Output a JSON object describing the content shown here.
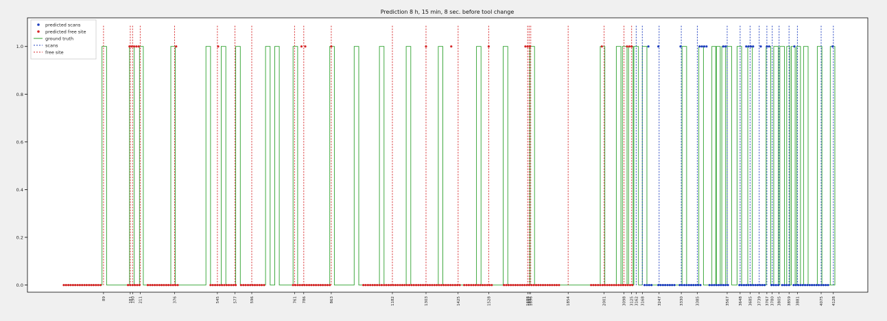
{
  "chart_data": {
    "type": "line",
    "title": "Prediction 8 h, 15 min, 8 sec. before tool change",
    "xlabel": "",
    "ylabel": "",
    "xlim": [
      0,
      1000
    ],
    "ylim": [
      -0.03,
      1.12
    ],
    "yticks": [
      0.0,
      0.2,
      0.4,
      0.6,
      0.8,
      1.0
    ],
    "ytick_labels": [
      "0.0",
      "0.2",
      "0.4",
      "0.6",
      "0.8",
      "1.0"
    ],
    "legend": {
      "placement": "top-left",
      "entries": [
        {
          "label": "predicted scans",
          "color": "#1f3fbf",
          "marker": "dot"
        },
        {
          "label": "predicted free site",
          "color": "#d62728",
          "marker": "dot"
        },
        {
          "label": "ground truth",
          "color": "#2ca02c",
          "marker": "line"
        },
        {
          "label": "scans",
          "color": "#1f3fbf",
          "marker": "dashed"
        },
        {
          "label": "free site",
          "color": "#d62728",
          "marker": "dashed"
        }
      ]
    },
    "ground_truth_pulses": [
      [
        50,
        56
      ],
      [
        86,
        92
      ],
      [
        99,
        104
      ],
      [
        140,
        146
      ],
      [
        186,
        192
      ],
      [
        206,
        212
      ],
      [
        225,
        231
      ],
      [
        264,
        270
      ],
      [
        276,
        282
      ],
      [
        300,
        306
      ],
      [
        348,
        354
      ],
      [
        380,
        386
      ],
      [
        413,
        419
      ],
      [
        448,
        454
      ],
      [
        490,
        496
      ],
      [
        540,
        546
      ],
      [
        575,
        581
      ],
      [
        610,
        616
      ],
      [
        702,
        708
      ],
      [
        723,
        729
      ],
      [
        731,
        737
      ],
      [
        739,
        745
      ],
      [
        746,
        752
      ],
      [
        757,
        763
      ],
      [
        809,
        815
      ],
      [
        831,
        837
      ],
      [
        848,
        854
      ],
      [
        853,
        859
      ],
      [
        861,
        866
      ],
      [
        868,
        874
      ],
      [
        881,
        887
      ],
      [
        895,
        901
      ],
      [
        919,
        925
      ],
      [
        929,
        935
      ],
      [
        937,
        943
      ],
      [
        946,
        950
      ],
      [
        952,
        957
      ],
      [
        959,
        964
      ],
      [
        968,
        974
      ],
      [
        986,
        992
      ],
      [
        1003,
        1009
      ]
    ],
    "scan_events": [
      {
        "x": 749,
        "label": "3162"
      },
      {
        "x": 757,
        "label": "3168"
      },
      {
        "x": 779,
        "label": "3247"
      },
      {
        "x": 808,
        "label": "3330"
      },
      {
        "x": 829,
        "label": "3385"
      },
      {
        "x": 868,
        "label": "3567"
      },
      {
        "x": 885,
        "label": "3648"
      },
      {
        "x": 898,
        "label": "3685"
      },
      {
        "x": 910,
        "label": "3739"
      },
      {
        "x": 920,
        "label": "3767"
      },
      {
        "x": 927,
        "label": "3780"
      },
      {
        "x": 936,
        "label": "3805"
      },
      {
        "x": 949,
        "label": "3859"
      },
      {
        "x": 960,
        "label": "3881"
      },
      {
        "x": 991,
        "label": "4075"
      },
      {
        "x": 1007,
        "label": "4128"
      }
    ],
    "free_site_events": [
      {
        "x": 52,
        "label": "89"
      },
      {
        "x": 87,
        "label": "181"
      },
      {
        "x": 90,
        "label": "190"
      },
      {
        "x": 100,
        "label": "211"
      },
      {
        "x": 145,
        "label": "376"
      },
      {
        "x": 201,
        "label": "545"
      },
      {
        "x": 224,
        "label": "577"
      },
      {
        "x": 246,
        "label": "596"
      },
      {
        "x": 302,
        "label": "761"
      },
      {
        "x": 314,
        "label": "786"
      },
      {
        "x": 350,
        "label": "863"
      },
      {
        "x": 430,
        "label": "1182"
      },
      {
        "x": 474,
        "label": "1303"
      },
      {
        "x": 516,
        "label": "1425"
      },
      {
        "x": 556,
        "label": "1528"
      },
      {
        "x": 607,
        "label": "1688"
      },
      {
        "x": 609,
        "label": "1692"
      },
      {
        "x": 611,
        "label": "1696"
      },
      {
        "x": 660,
        "label": "1854"
      },
      {
        "x": 707,
        "label": "2001"
      },
      {
        "x": 733,
        "label": "3098"
      },
      {
        "x": 743,
        "label": "3125"
      }
    ],
    "predicted_free_site_runs": [
      [
        0,
        50
      ],
      [
        84,
        100
      ],
      [
        110,
        150
      ],
      [
        192,
        225
      ],
      [
        232,
        264
      ],
      [
        300,
        350
      ],
      [
        392,
        520
      ],
      [
        524,
        560
      ],
      [
        576,
        610
      ],
      [
        612,
        650
      ],
      [
        690,
        745
      ]
    ],
    "predicted_free_site_high": [
      [
        86,
        100
      ],
      [
        147,
        147
      ],
      [
        202,
        202
      ],
      [
        311,
        311
      ],
      [
        316,
        316
      ],
      [
        350,
        350
      ],
      [
        474,
        474
      ],
      [
        507,
        507
      ],
      [
        556,
        556
      ],
      [
        604,
        612
      ],
      [
        704,
        704
      ],
      [
        737,
        745
      ]
    ],
    "predicted_scans_runs": [
      [
        760,
        770
      ],
      [
        778,
        800
      ],
      [
        806,
        835
      ],
      [
        845,
        870
      ],
      [
        884,
        917
      ],
      [
        926,
        935
      ],
      [
        940,
        950
      ],
      [
        955,
        1000
      ]
    ],
    "predicted_scans_high": [
      [
        765,
        765
      ],
      [
        778,
        778
      ],
      [
        807,
        807
      ],
      [
        832,
        842
      ],
      [
        863,
        868
      ],
      [
        893,
        902
      ],
      [
        912,
        912
      ],
      [
        920,
        925
      ],
      [
        956,
        956
      ],
      [
        1006,
        1006
      ]
    ]
  }
}
